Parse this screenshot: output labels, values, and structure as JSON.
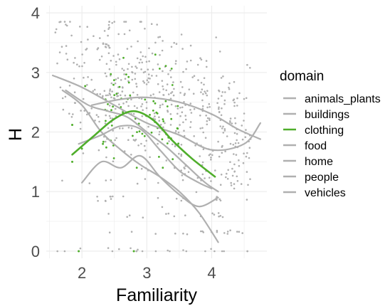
{
  "chart_data": {
    "type": "scatter",
    "xlabel": "Familiarity",
    "ylabel": "H",
    "xlim": [
      1.45,
      4.85
    ],
    "ylim": [
      -0.12,
      4.12
    ],
    "x_ticks": [
      2,
      3,
      4
    ],
    "x_tick_labels": [
      "2",
      "3",
      "4"
    ],
    "y_ticks": [
      0,
      1,
      2,
      3,
      4
    ],
    "y_tick_labels": [
      "0",
      "1",
      "2",
      "3",
      "4"
    ],
    "grid": true,
    "legend": {
      "title": "domain",
      "position": "right",
      "entries": [
        "animals_plants",
        "buildings",
        "clothing",
        "food",
        "home",
        "people",
        "vehicles"
      ]
    },
    "colors": {
      "highlight": "#4fae2b",
      "other": "#b0b0b0",
      "grid": "#ebebeb"
    },
    "series": [
      {
        "name": "animals_plants",
        "highlight": false,
        "smooth_x": [
          2.15,
          2.6,
          3.0,
          3.5,
          4.0,
          4.4,
          4.75
        ],
        "smooth_y": [
          2.45,
          2.55,
          2.58,
          2.5,
          2.3,
          2.05,
          1.88
        ]
      },
      {
        "name": "buildings",
        "highlight": false,
        "smooth_x": [
          1.55,
          2.0,
          2.5,
          3.0,
          3.5,
          4.0,
          4.5,
          4.75
        ],
        "smooth_y": [
          2.95,
          2.75,
          2.45,
          2.15,
          1.95,
          1.7,
          1.8,
          2.15
        ]
      },
      {
        "name": "clothing",
        "highlight": true,
        "smooth_x": [
          1.85,
          2.2,
          2.5,
          2.8,
          3.1,
          3.4,
          3.7,
          4.05
        ],
        "smooth_y": [
          1.62,
          1.95,
          2.22,
          2.35,
          2.2,
          1.85,
          1.55,
          1.25
        ]
      },
      {
        "name": "food",
        "highlight": false,
        "smooth_x": [
          1.7,
          2.0,
          2.3,
          2.6,
          2.9,
          3.2,
          3.5,
          3.8,
          4.1
        ],
        "smooth_y": [
          2.7,
          2.45,
          2.0,
          1.7,
          1.45,
          1.25,
          1.0,
          0.65,
          0.15
        ]
      },
      {
        "name": "home",
        "highlight": false,
        "smooth_x": [
          2.0,
          2.3,
          2.6,
          2.9,
          3.2,
          3.5,
          3.8,
          4.1
        ],
        "smooth_y": [
          1.15,
          1.5,
          1.4,
          1.6,
          1.25,
          0.95,
          0.75,
          0.9
        ]
      },
      {
        "name": "people",
        "highlight": false,
        "smooth_x": [
          1.95,
          2.3,
          2.6,
          2.9,
          3.2,
          3.5,
          3.8,
          4.0
        ],
        "smooth_y": [
          1.8,
          1.95,
          2.1,
          2.05,
          1.7,
          1.35,
          1.15,
          1.05
        ]
      },
      {
        "name": "vehicles",
        "highlight": false,
        "smooth_x": [
          1.75,
          2.1,
          2.4,
          2.7,
          3.0,
          3.3,
          3.6,
          3.9,
          4.1
        ],
        "smooth_y": [
          2.7,
          2.45,
          2.35,
          2.25,
          2.0,
          1.75,
          1.45,
          1.15,
          1.0
        ]
      }
    ],
    "scatter_note_series": "Points: ~600 grey observations (other domains) and ~70 green observations (clothing), concentrated between Familiarity 2.3 and 4.5, H 0 to 3.8."
  }
}
